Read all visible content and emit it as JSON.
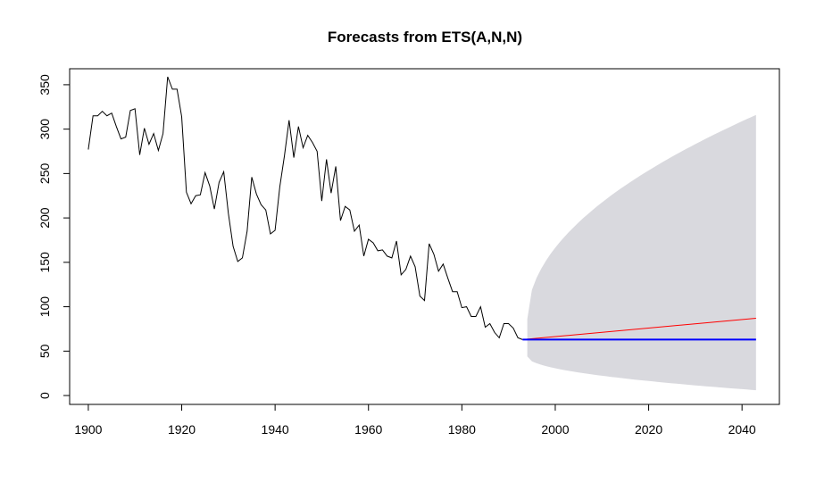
{
  "chart_data": {
    "type": "line",
    "title": "Forecasts from ETS(A,N,N)",
    "xlabel": "",
    "ylabel": "",
    "xlim": [
      1896,
      2048
    ],
    "ylim": [
      -10,
      368
    ],
    "x_ticks": [
      1900,
      1920,
      1940,
      1960,
      1980,
      2000,
      2020,
      2040
    ],
    "y_ticks": [
      0,
      50,
      100,
      150,
      200,
      250,
      300,
      350
    ],
    "grid": false,
    "legend": "none",
    "colors": {
      "observed": "#000000",
      "point_forecast": "#0000ff",
      "trend_line": "#ff0000",
      "prediction_interval": "#d9d9de"
    },
    "observed": {
      "x_start": 1900,
      "values": [
        277,
        315,
        315,
        320,
        315,
        318,
        303,
        289,
        291,
        321,
        323,
        271,
        301,
        283,
        295,
        276,
        295,
        359,
        345,
        345,
        314,
        229,
        216,
        225,
        226,
        251,
        236,
        210,
        240,
        252,
        205,
        168,
        151,
        155,
        185,
        246,
        227,
        215,
        209,
        182,
        186,
        235,
        270,
        310,
        268,
        303,
        279,
        293,
        285,
        275,
        219,
        266,
        228,
        258,
        197,
        213,
        209,
        185,
        192,
        157,
        176,
        172,
        163,
        164,
        157,
        155,
        174,
        136,
        142,
        157,
        145,
        112,
        107,
        171,
        159,
        140,
        148,
        132,
        117,
        117,
        99,
        100,
        89,
        89,
        100,
        77,
        81,
        71,
        65,
        81,
        81,
        76,
        65,
        63
      ],
      "last_x": 1993
    },
    "forecast": {
      "x_start": 1994,
      "x_end": 2043,
      "point": 63,
      "trend_end": 87,
      "lower_start": 44,
      "lower_end": 6,
      "upper_start": 86,
      "upper_end": 316
    }
  }
}
